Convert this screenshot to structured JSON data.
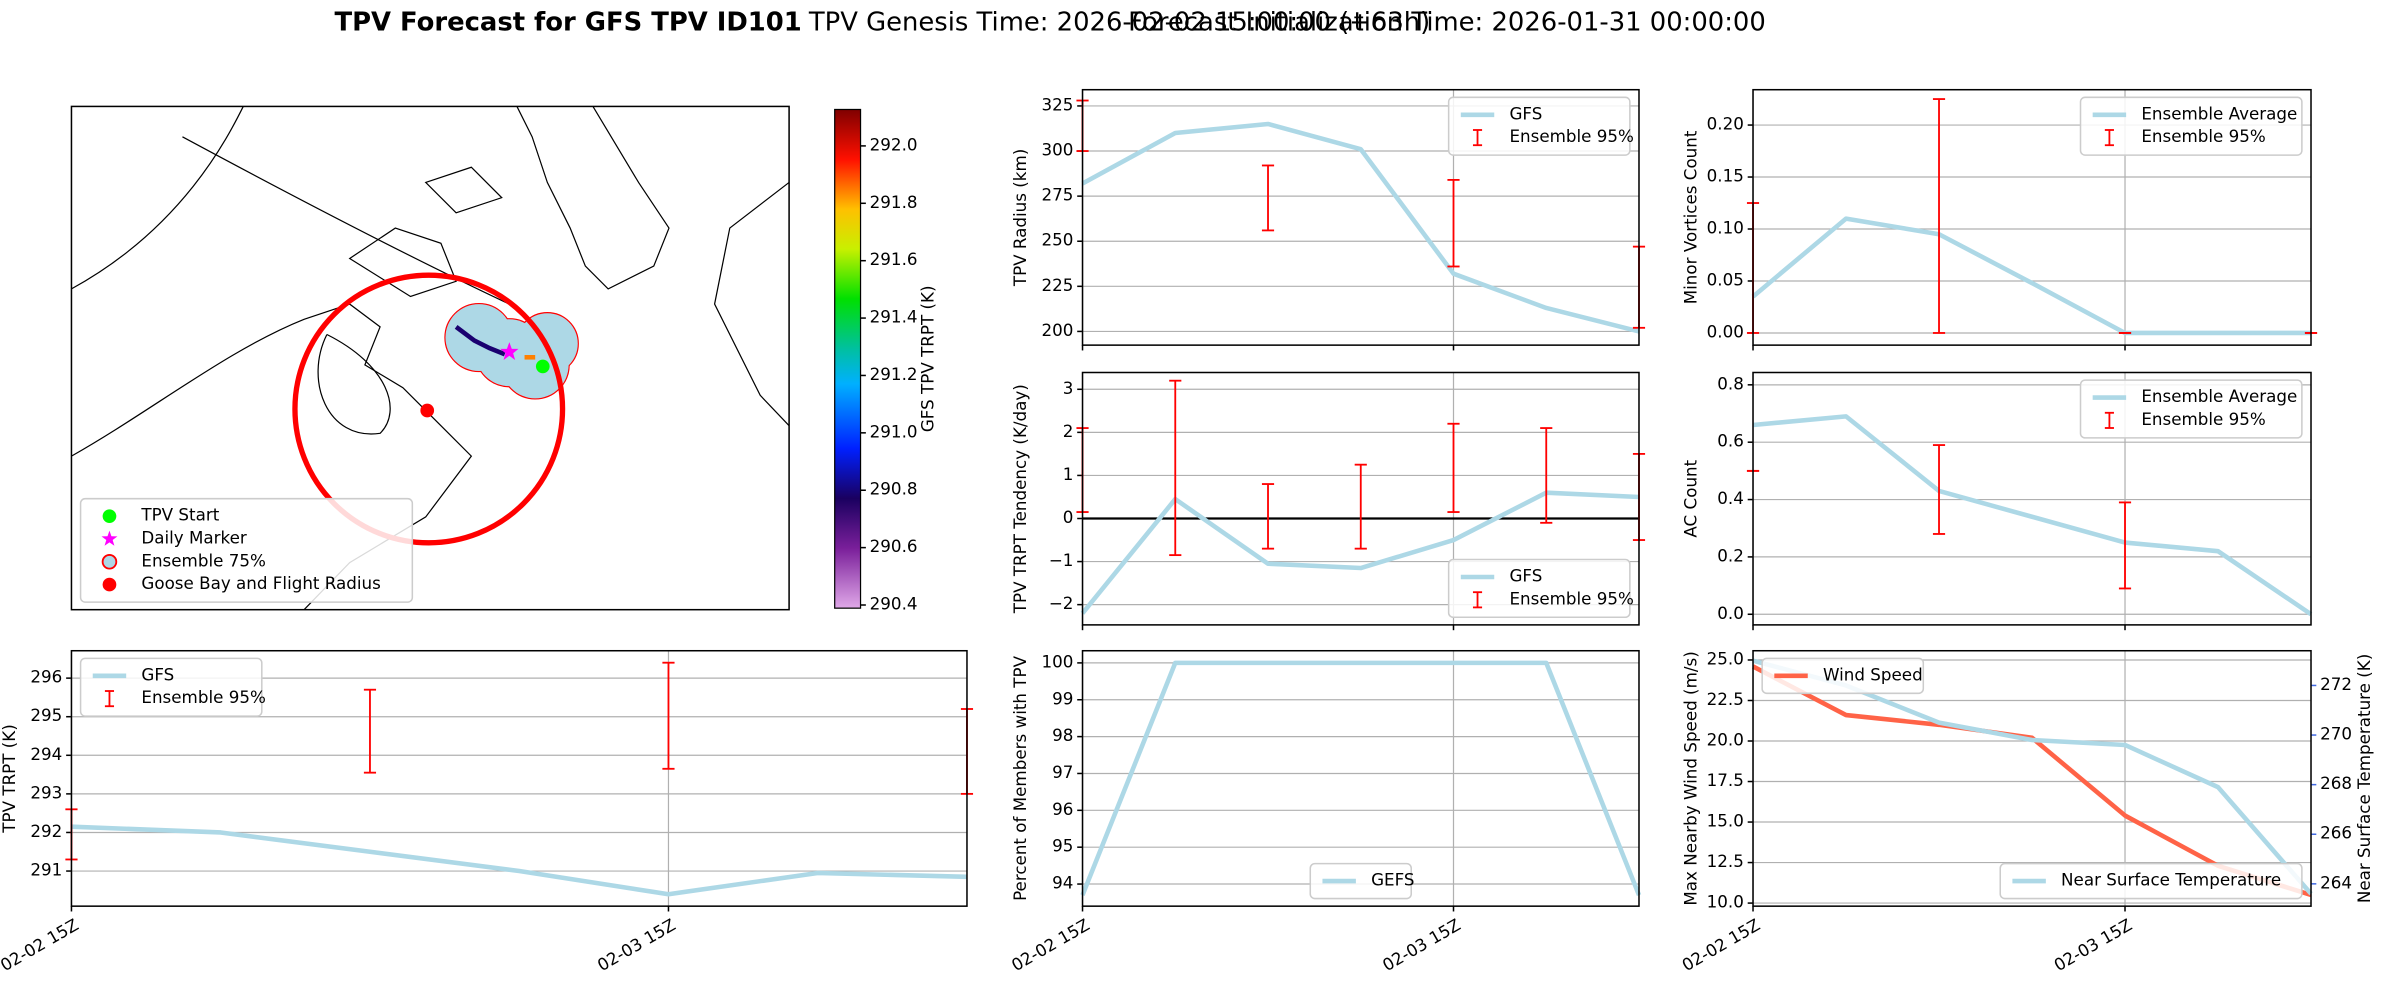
{
  "figure_title": {
    "main": "TPV Forecast for GFS TPV ID101",
    "genesis": "TPV Genesis Time: 2026-02-02 15:00:00 (+63h)",
    "init": "Forecast Initialization Time: 2026-01-31 00:00:00"
  },
  "chart_data": [
    {
      "type": "map",
      "colorbar_label": "GFS TPV TRPT (K)",
      "clim": [
        290.389,
        292.127
      ],
      "cticks": [
        290.4,
        290.6,
        290.8,
        {
          "value": 291.0,
          "label": "291.0"
        },
        291.2,
        291.4,
        291.6,
        291.8,
        {
          "value": 292.0,
          "label": "292.0"
        }
      ],
      "legend": "lower left",
      "series": [
        {
          "name": "TPV Start",
          "color": "#00ff00",
          "marker": "circle"
        },
        {
          "name": "Daily Marker",
          "color": "#ff00ff",
          "marker": "star"
        },
        {
          "name": "Ensemble 75%",
          "color": "#add8e6",
          "edgecolor": "#ff0000",
          "marker": "circle"
        },
        {
          "name": "Goose Bay and Flight Radius",
          "color": "#ff0000",
          "marker": "circle"
        }
      ]
    },
    {
      "type": "line",
      "ylabel": "TPV Radius (km)",
      "x": [
        0,
        6,
        12,
        18,
        24,
        30,
        36
      ],
      "xlim": [
        0,
        36
      ],
      "xticks": [
        {
          "value": 0,
          "label": "02-02 15Z"
        },
        {
          "value": 24,
          "label": "02-03 15Z"
        }
      ],
      "ylim": [
        192.4,
        334
      ],
      "yticks": [
        200,
        225,
        250,
        275,
        300,
        325
      ],
      "grid": true,
      "legend": "upper right",
      "series": [
        {
          "name": "GFS",
          "color": "#add8e6",
          "values": [
            282,
            310,
            315,
            301,
            232,
            213,
            200
          ]
        }
      ],
      "errorbars": {
        "name": "Ensemble 95%",
        "color": "#ff0000",
        "x": [
          0,
          12,
          24,
          36
        ],
        "low": [
          300,
          256,
          236,
          202
        ],
        "high": [
          328,
          292,
          284,
          247
        ]
      }
    },
    {
      "type": "line",
      "ylabel": "Minor Vortices Count",
      "x": [
        0,
        6,
        12,
        18,
        24,
        30,
        36
      ],
      "xlim": [
        0,
        36
      ],
      "xticks": [
        {
          "value": 0,
          "label": "02-02 15Z"
        },
        {
          "value": 24,
          "label": "02-03 15Z"
        }
      ],
      "ylim": [
        -0.0117,
        0.234
      ],
      "yticks": [
        {
          "value": 0,
          "label": "0.00"
        },
        0.05,
        {
          "value": 0.1,
          "label": "0.10"
        },
        0.15,
        {
          "value": 0.2,
          "label": "0.20"
        }
      ],
      "grid": true,
      "legend": "upper right",
      "series": [
        {
          "name": "Ensemble Average",
          "color": "#add8e6",
          "values": [
            0.035,
            0.11,
            0.095,
            0.048,
            0,
            0,
            0
          ]
        }
      ],
      "errorbars": {
        "name": "Ensemble 95%",
        "color": "#ff0000",
        "x": [
          0,
          12,
          24,
          36
        ],
        "low": [
          0,
          0,
          0,
          0
        ],
        "high": [
          0.125,
          0.225,
          0,
          0
        ]
      }
    },
    {
      "type": "line",
      "ylabel": "TPV TRPT Tendency (K/day)",
      "x": [
        0,
        6,
        12,
        18,
        24,
        30,
        36
      ],
      "xlim": [
        0,
        36
      ],
      "xticks": [
        {
          "value": 0,
          "label": "02-02 15Z"
        },
        {
          "value": 24,
          "label": "02-03 15Z"
        }
      ],
      "ylim": [
        -2.47,
        3.39
      ],
      "yticks": [
        {
          "value": -2,
          "label": "−2"
        },
        {
          "value": -1,
          "label": "−1"
        },
        0,
        1,
        2,
        3
      ],
      "grid": true,
      "legend": "lower right",
      "hline": 0,
      "series": [
        {
          "name": "GFS",
          "color": "#add8e6",
          "values": [
            -2.2,
            0.45,
            -1.05,
            -1.15,
            -0.5,
            0.6,
            0.5
          ]
        }
      ],
      "errorbars": {
        "name": "Ensemble 95%",
        "color": "#ff0000",
        "x": [
          0,
          6,
          12,
          18,
          24,
          30,
          36
        ],
        "low": [
          0.15,
          -0.85,
          -0.7,
          -0.7,
          0.15,
          -0.1,
          -0.5
        ],
        "high": [
          2.1,
          3.2,
          0.8,
          1.25,
          2.2,
          2.1,
          1.5
        ]
      }
    },
    {
      "type": "line",
      "ylabel": "AC Count",
      "x": [
        0,
        6,
        12,
        18,
        24,
        30,
        36
      ],
      "xlim": [
        0,
        36
      ],
      "xticks": [
        {
          "value": 0,
          "label": "02-02 15Z"
        },
        {
          "value": 24,
          "label": "02-03 15Z"
        }
      ],
      "ylim": [
        -0.037,
        0.843
      ],
      "yticks": [
        {
          "value": 0,
          "label": "0.0"
        },
        0.2,
        0.4,
        0.6,
        0.8
      ],
      "grid": true,
      "legend": "upper right",
      "series": [
        {
          "name": "Ensemble Average",
          "color": "#add8e6",
          "values": [
            0.66,
            0.69,
            0.43,
            0.34,
            0.25,
            0.22,
            0.0
          ]
        }
      ],
      "errorbars": {
        "name": "Ensemble 95%",
        "color": "#ff0000",
        "x": [
          0,
          12,
          24
        ],
        "low": [
          0.5,
          0.28,
          0.09
        ],
        "high": [
          0.5,
          0.59,
          0.39
        ]
      }
    },
    {
      "type": "line",
      "ylabel": "TPV TRPT (K)",
      "x": [
        0,
        6,
        12,
        18,
        24,
        30,
        36
      ],
      "xlim": [
        0,
        36
      ],
      "xticks": [
        {
          "value": 0,
          "label": "02-02 15Z"
        },
        {
          "value": 24,
          "label": "02-03 15Z"
        }
      ],
      "ylim": [
        290.09,
        296.71
      ],
      "yticks": [
        291,
        292,
        293,
        294,
        295,
        296
      ],
      "grid": true,
      "legend": "upper left",
      "series": [
        {
          "name": "GFS",
          "color": "#add8e6",
          "values": [
            292.15,
            292.0,
            291.5,
            291.0,
            290.4,
            290.95,
            290.85
          ]
        }
      ],
      "errorbars": {
        "name": "Ensemble 95%",
        "color": "#ff0000",
        "x": [
          0,
          12,
          24,
          36
        ],
        "low": [
          291.3,
          293.55,
          293.65,
          293.0
        ],
        "high": [
          292.6,
          295.7,
          296.4,
          295.2
        ]
      }
    },
    {
      "type": "line",
      "ylabel": "Percent of Members with TPV",
      "x": [
        0,
        6,
        12,
        18,
        24,
        30,
        36
      ],
      "xlim": [
        0,
        36
      ],
      "xticks": [
        {
          "value": 0,
          "label": "02-02 15Z"
        },
        {
          "value": 24,
          "label": "02-03 15Z"
        }
      ],
      "ylim": [
        93.4,
        100.33
      ],
      "yticks": [
        94,
        95,
        96,
        97,
        98,
        99,
        100
      ],
      "grid": true,
      "legend": "lower center",
      "series": [
        {
          "name": "GEFS",
          "color": "#add8e6",
          "values": [
            93.7,
            100,
            100,
            100,
            100,
            100,
            93.7
          ]
        }
      ]
    },
    {
      "type": "line",
      "ylabel": "Max Nearby Wind Speed (m/s)",
      "y2label": "Near Surface Temperature (K)",
      "y2color": "#4169e1",
      "x": [
        0,
        6,
        12,
        18,
        24,
        30,
        36
      ],
      "xlim": [
        0,
        36
      ],
      "xticks": [
        {
          "value": 0,
          "label": "02-02 15Z"
        },
        {
          "value": 24,
          "label": "02-03 15Z"
        }
      ],
      "ylim": [
        9.81,
        25.57
      ],
      "yticks": [
        {
          "value": 10,
          "label": "10.0"
        },
        12.5,
        {
          "value": 15,
          "label": "15.0"
        },
        17.5,
        {
          "value": 20,
          "label": "20.0"
        },
        22.5,
        {
          "value": 25,
          "label": "25.0"
        }
      ],
      "y2lim": [
        263.1,
        273.4
      ],
      "y2ticks": [
        264,
        266,
        268,
        270,
        272
      ],
      "grid": true,
      "legend": "upper left",
      "legend_y2": "lower right",
      "series": [
        {
          "name": "Wind Speed",
          "color": "#ff6347",
          "values": [
            24.6,
            21.6,
            21.0,
            20.2,
            15.4,
            12.3,
            10.5
          ]
        },
        {
          "name": "Near Surface Temperature",
          "color": "#add8e6",
          "axis": "y2",
          "values": [
            273.0,
            272.0,
            270.5,
            269.8,
            269.6,
            267.9,
            263.6
          ]
        }
      ]
    }
  ]
}
